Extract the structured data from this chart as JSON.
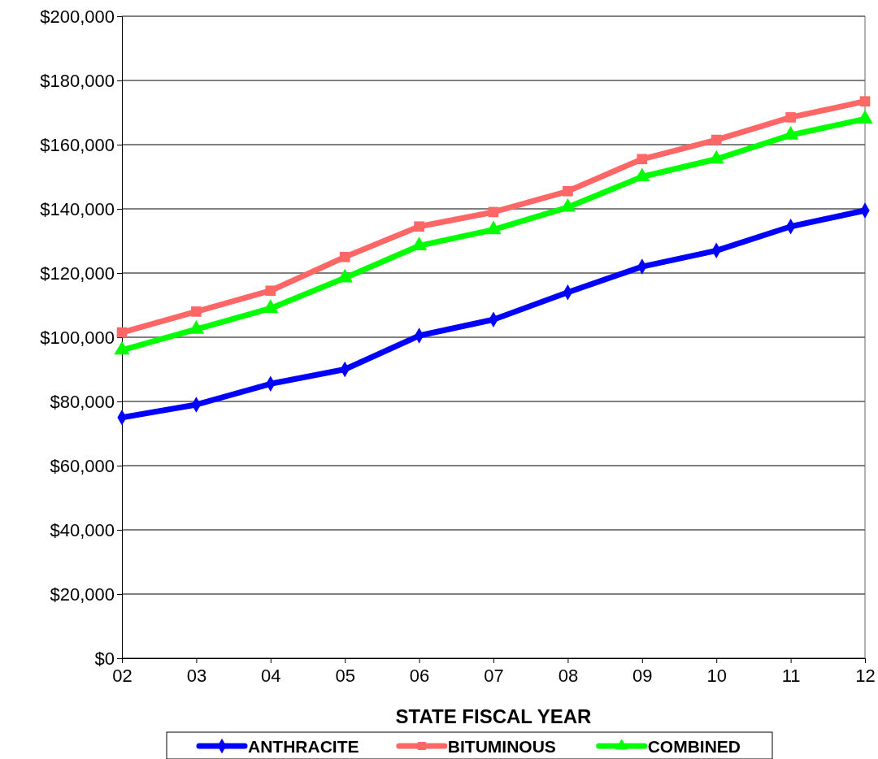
{
  "chart_data": {
    "type": "line",
    "xlabel": "STATE FISCAL YEAR",
    "categories": [
      "02",
      "03",
      "04",
      "05",
      "06",
      "07",
      "08",
      "09",
      "10",
      "11",
      "12"
    ],
    "series": [
      {
        "name": "ANTHRACITE",
        "color": "#0000ff",
        "marker": "diamond",
        "values": [
          75000,
          79000,
          85500,
          90000,
          100500,
          105500,
          114000,
          122000,
          127000,
          134500,
          139500
        ]
      },
      {
        "name": "BITUMINOUS",
        "color": "#ff6666",
        "marker": "square",
        "values": [
          101500,
          108000,
          114500,
          125000,
          134500,
          139000,
          145500,
          155500,
          161500,
          168500,
          173500
        ]
      },
      {
        "name": "COMBINED",
        "color": "#00ff00",
        "marker": "triangle",
        "values": [
          96000,
          102500,
          109000,
          118500,
          128500,
          133500,
          140500,
          150000,
          155500,
          163000,
          168000
        ]
      }
    ],
    "ylim": [
      0,
      200000
    ],
    "yticks": [
      {
        "value": 0,
        "label": "$0"
      },
      {
        "value": 20000,
        "label": "$20,000"
      },
      {
        "value": 40000,
        "label": "$40,000"
      },
      {
        "value": 60000,
        "label": "$60,000"
      },
      {
        "value": 80000,
        "label": "$80,000"
      },
      {
        "value": 100000,
        "label": "$100,000"
      },
      {
        "value": 120000,
        "label": "$120,000"
      },
      {
        "value": 140000,
        "label": "$140,000"
      },
      {
        "value": 160000,
        "label": "$160,000"
      },
      {
        "value": 180000,
        "label": "$180,000"
      },
      {
        "value": 200000,
        "label": "$200,000"
      }
    ],
    "grid": "y",
    "legend": "bottom",
    "line_style": "solid"
  }
}
